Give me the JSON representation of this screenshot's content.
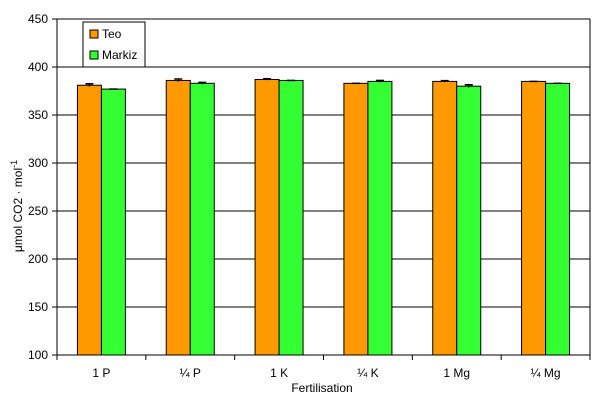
{
  "chart_data": {
    "type": "bar",
    "categories": [
      "1 P",
      "¼ P",
      "1 K",
      "¼ K",
      "1 Mg",
      "¼ Mg"
    ],
    "series": [
      {
        "name": "Teo",
        "color": "#ff9900",
        "values": [
          381,
          386,
          387,
          383,
          385,
          385
        ],
        "errors": [
          1.5,
          1.5,
          0.8,
          0,
          0.8,
          0
        ]
      },
      {
        "name": "Markiz",
        "color": "#33ff33",
        "values": [
          377,
          383,
          386,
          385,
          380,
          383
        ],
        "errors": [
          0,
          1,
          0,
          1,
          1.5,
          0
        ]
      }
    ],
    "xlabel": "Fertilisation",
    "ylabel_prefix": "μmol CO2 · mol",
    "ylabel_sup": "-1",
    "ylim": [
      100,
      450
    ],
    "yticks": [
      "100",
      "150",
      "200",
      "250",
      "300",
      "350",
      "400",
      "450"
    ],
    "grid": true,
    "legend_position": "top-left"
  }
}
